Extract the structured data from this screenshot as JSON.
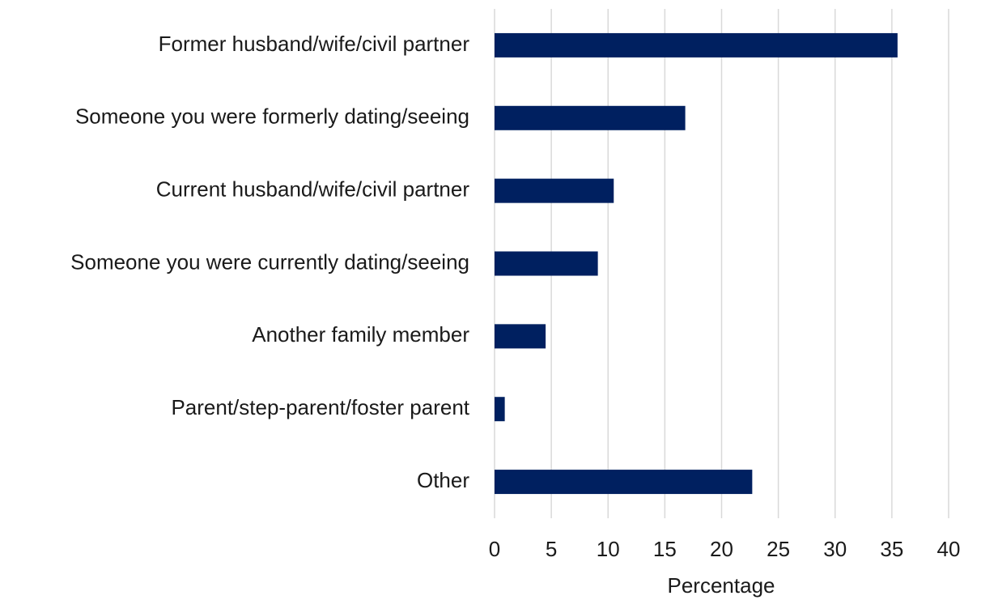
{
  "chart_data": {
    "type": "bar",
    "orientation": "horizontal",
    "categories": [
      "Former husband/wife/civil partner",
      "Someone you were formerly dating/seeing",
      "Current husband/wife/civil partner",
      "Someone you were currently dating/seeing",
      "Another family member",
      "Parent/step-parent/foster parent",
      "Other"
    ],
    "values": [
      35.5,
      16.8,
      10.5,
      9.1,
      4.5,
      0.9,
      22.7
    ],
    "color": "#002060",
    "x_label": "Percentage",
    "xlim": [
      0,
      40
    ],
    "xticks": [
      0,
      5,
      10,
      15,
      20,
      25,
      30,
      35,
      40
    ],
    "grid": true
  }
}
